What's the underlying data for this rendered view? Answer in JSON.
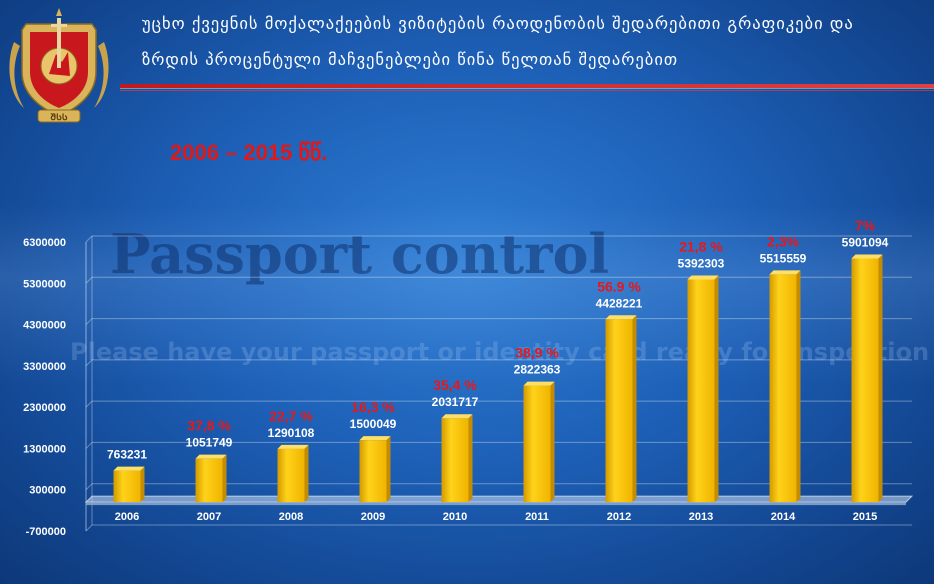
{
  "header": {
    "line1": "უცხო ქვეყნის მოქალაქეების ვიზიტების რაოდენობის შედარებითი გრაფიკები და",
    "line2": "ზრდის პროცენტული მაჩვენებლები წინა წელთან შედარებით",
    "period": "2006 – 2015 წწ.",
    "emblem_text": "ᲨᲡᲡ"
  },
  "background": {
    "big_text": "Passport control",
    "small_text": "Please have your passport or identity card ready for inspection"
  },
  "colors": {
    "bar": "#ffc800",
    "accent_red": "#e01818",
    "header_rule": "#c21a1a"
  },
  "chart_data": {
    "type": "bar",
    "categories": [
      "2006",
      "2007",
      "2008",
      "2009",
      "2010",
      "2011",
      "2012",
      "2013",
      "2014",
      "2015"
    ],
    "values": [
      763231,
      1051749,
      1290108,
      1500049,
      2031717,
      2822363,
      4428221,
      5392303,
      5515559,
      5901094
    ],
    "value_labels": [
      "763231",
      "1051749",
      "1290108",
      "1500049",
      "2031717",
      "2822363",
      "4428221",
      "5392303",
      "5515559",
      "5901094"
    ],
    "growth_labels": [
      "",
      "37,8 %",
      "22,7 %",
      "16,3 %",
      "35,4 %",
      "38,9 %",
      "56.9 %",
      "21,8 %",
      "2,3%",
      "7%"
    ],
    "ylim": [
      -700000,
      6300000
    ],
    "yticks": [
      -700000,
      300000,
      1300000,
      2300000,
      3300000,
      4300000,
      5300000,
      6300000
    ],
    "ytick_labels": [
      "-700000",
      "300000",
      "1300000",
      "2300000",
      "3300000",
      "4300000",
      "5300000",
      "6300000"
    ],
    "grid": true,
    "legend": "none"
  }
}
